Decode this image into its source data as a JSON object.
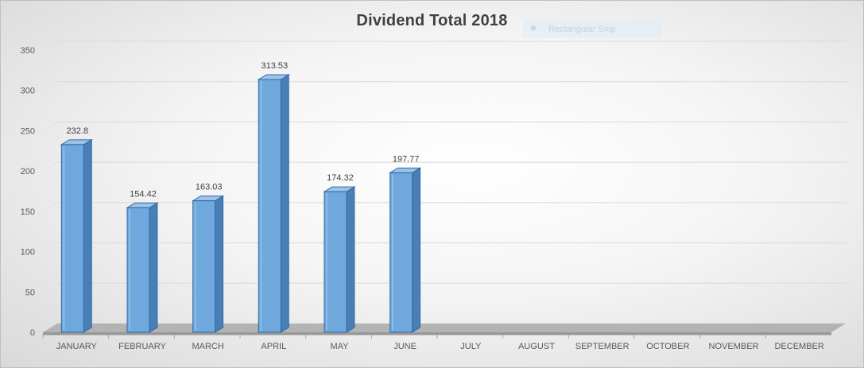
{
  "chart_data": {
    "type": "bar",
    "title": "Dividend Total 2018",
    "categories": [
      "JANUARY",
      "FEBRUARY",
      "MARCH",
      "APRIL",
      "MAY",
      "JUNE",
      "JULY",
      "AUGUST",
      "SEPTEMBER",
      "OCTOBER",
      "NOVEMBER",
      "DECEMBER"
    ],
    "values": [
      232.8,
      154.42,
      163.03,
      313.53,
      174.32,
      197.77,
      null,
      null,
      null,
      null,
      null,
      null
    ],
    "data_labels": [
      "232.8",
      "154.42",
      "163.03",
      "313.53",
      "174.32",
      "197.77",
      "",
      "",
      "",
      "",
      "",
      ""
    ],
    "ylim": [
      0,
      350
    ],
    "yticks": [
      0,
      50,
      100,
      150,
      200,
      250,
      300,
      350
    ],
    "xlabel": "",
    "ylabel": "",
    "grid": true,
    "legend": "none",
    "style": "3d-column",
    "bar_color": "#6fa8dc",
    "bar_side_color": "#4a7fb5",
    "bar_edge_color": "#2e6aa8",
    "floor_color": "#b3b3b3"
  },
  "overlay": {
    "label": "Rectangular Snip",
    "icon": "snip-icon"
  }
}
